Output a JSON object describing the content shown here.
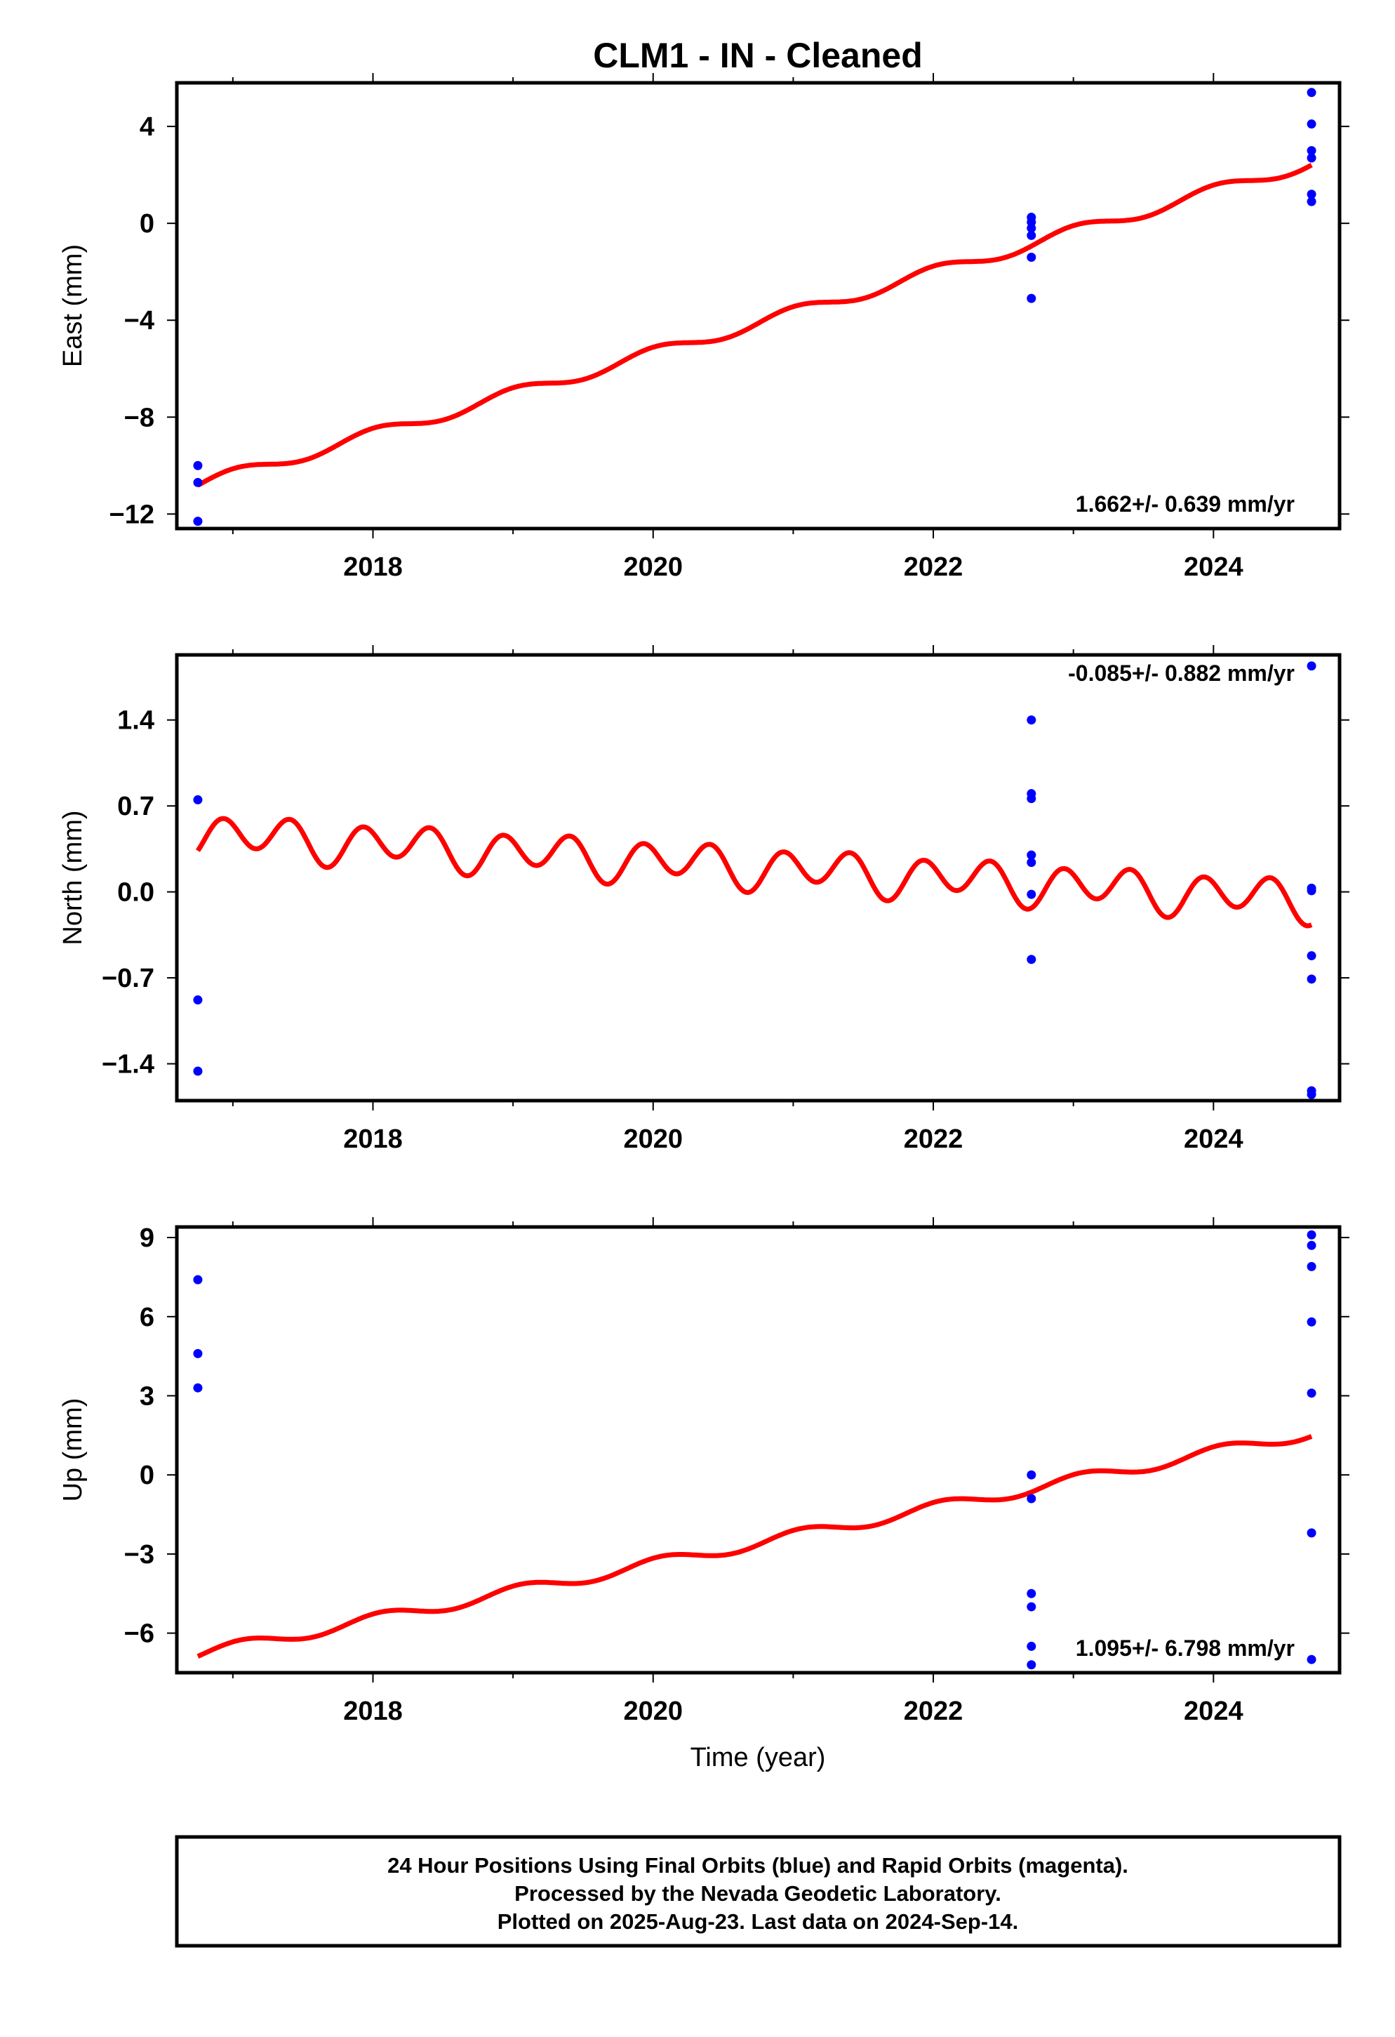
{
  "title": "CLM1  - IN - Cleaned",
  "xlabel": "Time (year)",
  "colors": {
    "fit": "#ff0000",
    "final_orbits": "#0000ff",
    "axes": "#000000"
  },
  "footer": {
    "lines": [
      "24 Hour Positions Using Final Orbits (blue) and Rapid Orbits (magenta).",
      "Processed by the Nevada Geodetic Laboratory.",
      "Plotted on 2025-Aug-23. Last data on 2024-Sep-14."
    ]
  },
  "chart_data": [
    {
      "type": "scatter",
      "ylabel": "East (mm)",
      "xlim": [
        2016.6,
        2024.9
      ],
      "ylim": [
        -12.6,
        5.8
      ],
      "xticks": [
        2018,
        2020,
        2022,
        2024
      ],
      "yticks": [
        4,
        0,
        -4,
        -8,
        -12
      ],
      "ytick_labels": [
        "4",
        "0",
        "−4",
        "−8",
        "−12"
      ],
      "rate_label": "1.662+/- 0.639 mm/yr",
      "rate_position": "bottom-right",
      "points": [
        {
          "x": 2016.75,
          "y": -10.0
        },
        {
          "x": 2016.75,
          "y": -10.7
        },
        {
          "x": 2016.75,
          "y": -12.3
        },
        {
          "x": 2022.7,
          "y": 0.25
        },
        {
          "x": 2022.7,
          "y": 0.05
        },
        {
          "x": 2022.7,
          "y": -0.2
        },
        {
          "x": 2022.7,
          "y": -0.5
        },
        {
          "x": 2022.7,
          "y": -1.4
        },
        {
          "x": 2022.7,
          "y": -3.1
        },
        {
          "x": 2024.7,
          "y": 5.4
        },
        {
          "x": 2024.7,
          "y": 4.1
        },
        {
          "x": 2024.7,
          "y": 3.0
        },
        {
          "x": 2024.7,
          "y": 2.7
        },
        {
          "x": 2024.7,
          "y": 1.2
        },
        {
          "x": 2024.7,
          "y": 0.9
        }
      ],
      "fit": {
        "x_start": 2016.75,
        "x_end": 2024.7,
        "start_value": -10.8,
        "end_value": 2.5,
        "annual_amplitude": 0.25,
        "annual_phase": 1.5,
        "semiannual_amplitude": 0.0,
        "semiannual_phase": 0
      }
    },
    {
      "type": "scatter",
      "ylabel": "North (mm)",
      "xlim": [
        2016.6,
        2024.9
      ],
      "ylim": [
        -1.7,
        1.93
      ],
      "xticks": [
        2018,
        2020,
        2022,
        2024
      ],
      "yticks": [
        1.4,
        0.7,
        0.0,
        -0.7,
        -1.4
      ],
      "ytick_labels": [
        "1.4",
        "0.7",
        "0.0",
        "−0.7",
        "−1.4"
      ],
      "rate_label": "-0.085+/- 0.882 mm/yr",
      "rate_position": "top-right",
      "points": [
        {
          "x": 2016.75,
          "y": 0.75
        },
        {
          "x": 2016.75,
          "y": -0.88
        },
        {
          "x": 2016.75,
          "y": -1.46
        },
        {
          "x": 2022.7,
          "y": 1.4
        },
        {
          "x": 2022.7,
          "y": 0.8
        },
        {
          "x": 2022.7,
          "y": 0.76
        },
        {
          "x": 2022.7,
          "y": 0.3
        },
        {
          "x": 2022.7,
          "y": 0.24
        },
        {
          "x": 2022.7,
          "y": -0.02
        },
        {
          "x": 2022.7,
          "y": -0.55
        },
        {
          "x": 2024.7,
          "y": 1.84
        },
        {
          "x": 2024.7,
          "y": 0.03
        },
        {
          "x": 2024.7,
          "y": 0.01
        },
        {
          "x": 2024.7,
          "y": -0.52
        },
        {
          "x": 2024.7,
          "y": -0.71
        },
        {
          "x": 2024.7,
          "y": -1.62
        },
        {
          "x": 2024.7,
          "y": -1.65
        }
      ],
      "fit": {
        "x_start": 2016.75,
        "x_end": 2024.7,
        "start_value": 0.47,
        "end_value": -0.07,
        "annual_amplitude": 0.06,
        "annual_phase": 0.3,
        "semiannual_amplitude": 0.15,
        "semiannual_phase": 2.6
      }
    },
    {
      "type": "scatter",
      "ylabel": "Up (mm)",
      "xlim": [
        2016.6,
        2024.9
      ],
      "ylim": [
        -7.5,
        9.4
      ],
      "xticks": [
        2018,
        2020,
        2022,
        2024
      ],
      "yticks": [
        9,
        6,
        3,
        0,
        -3,
        -6
      ],
      "ytick_labels": [
        "9",
        "6",
        "3",
        "0",
        "−3",
        "−6"
      ],
      "rate_label": "1.095+/- 6.798 mm/yr",
      "rate_position": "bottom-right",
      "points": [
        {
          "x": 2016.75,
          "y": 7.4
        },
        {
          "x": 2016.75,
          "y": 4.6
        },
        {
          "x": 2016.75,
          "y": 3.3
        },
        {
          "x": 2022.7,
          "y": 0.0
        },
        {
          "x": 2022.7,
          "y": -0.9
        },
        {
          "x": 2022.7,
          "y": -4.5
        },
        {
          "x": 2022.7,
          "y": -5.0
        },
        {
          "x": 2022.7,
          "y": -6.5
        },
        {
          "x": 2022.7,
          "y": -7.2
        },
        {
          "x": 2024.7,
          "y": 9.1
        },
        {
          "x": 2024.7,
          "y": 8.7
        },
        {
          "x": 2024.7,
          "y": 7.9
        },
        {
          "x": 2024.7,
          "y": 5.8
        },
        {
          "x": 2024.7,
          "y": 3.1
        },
        {
          "x": 2024.7,
          "y": -2.2
        },
        {
          "x": 2024.7,
          "y": -7.0
        }
      ],
      "fit": {
        "x_start": 2016.75,
        "x_end": 2024.7,
        "start_value": -6.8,
        "end_value": 1.6,
        "annual_amplitude": 0.22,
        "annual_phase": 1.2,
        "semiannual_amplitude": 0.0,
        "semiannual_phase": 0
      }
    }
  ]
}
